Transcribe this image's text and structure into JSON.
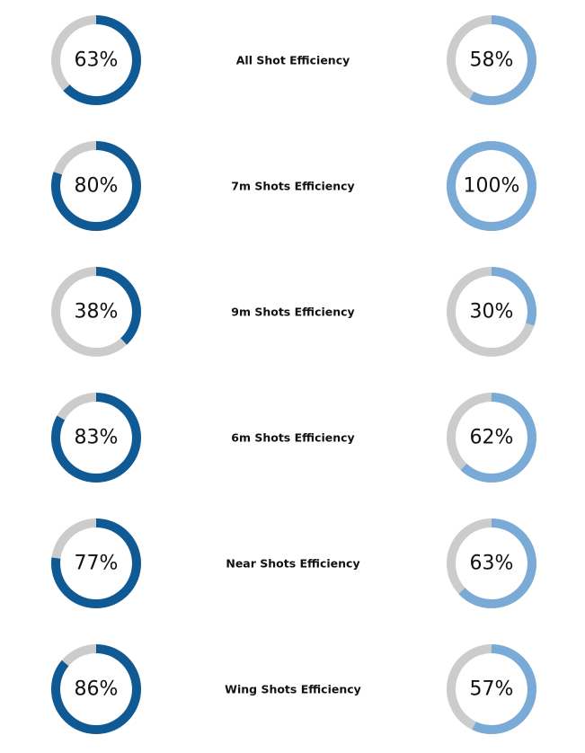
{
  "chart_data": [
    {
      "type": "donut",
      "title": "All Shot Efficiency",
      "values": [
        63,
        58
      ],
      "value_labels": [
        "63%",
        "58%"
      ],
      "colors": [
        "#0f5a94",
        "#7aaad6"
      ],
      "track_color": "#cccccc",
      "max": 100
    },
    {
      "type": "donut",
      "title": "7m Shots Efficiency",
      "values": [
        80,
        100
      ],
      "value_labels": [
        "80%",
        "100%"
      ],
      "colors": [
        "#0f5a94",
        "#7aaad6"
      ],
      "track_color": "#cccccc",
      "max": 100
    },
    {
      "type": "donut",
      "title": "9m Shots Efficiency",
      "values": [
        38,
        30
      ],
      "value_labels": [
        "38%",
        "30%"
      ],
      "colors": [
        "#0f5a94",
        "#7aaad6"
      ],
      "track_color": "#cccccc",
      "max": 100
    },
    {
      "type": "donut",
      "title": "6m Shots Efficiency",
      "values": [
        83,
        62
      ],
      "value_labels": [
        "83%",
        "62%"
      ],
      "colors": [
        "#0f5a94",
        "#7aaad6"
      ],
      "track_color": "#cccccc",
      "max": 100
    },
    {
      "type": "donut",
      "title": "Near Shots Efficiency",
      "values": [
        77,
        63
      ],
      "value_labels": [
        "77%",
        "63%"
      ],
      "colors": [
        "#0f5a94",
        "#7aaad6"
      ],
      "track_color": "#cccccc",
      "max": 100
    },
    {
      "type": "donut",
      "title": "Wing Shots Efficiency",
      "values": [
        86,
        57
      ],
      "value_labels": [
        "86%",
        "57%"
      ],
      "colors": [
        "#0f5a94",
        "#7aaad6"
      ],
      "track_color": "#cccccc",
      "max": 100
    }
  ]
}
